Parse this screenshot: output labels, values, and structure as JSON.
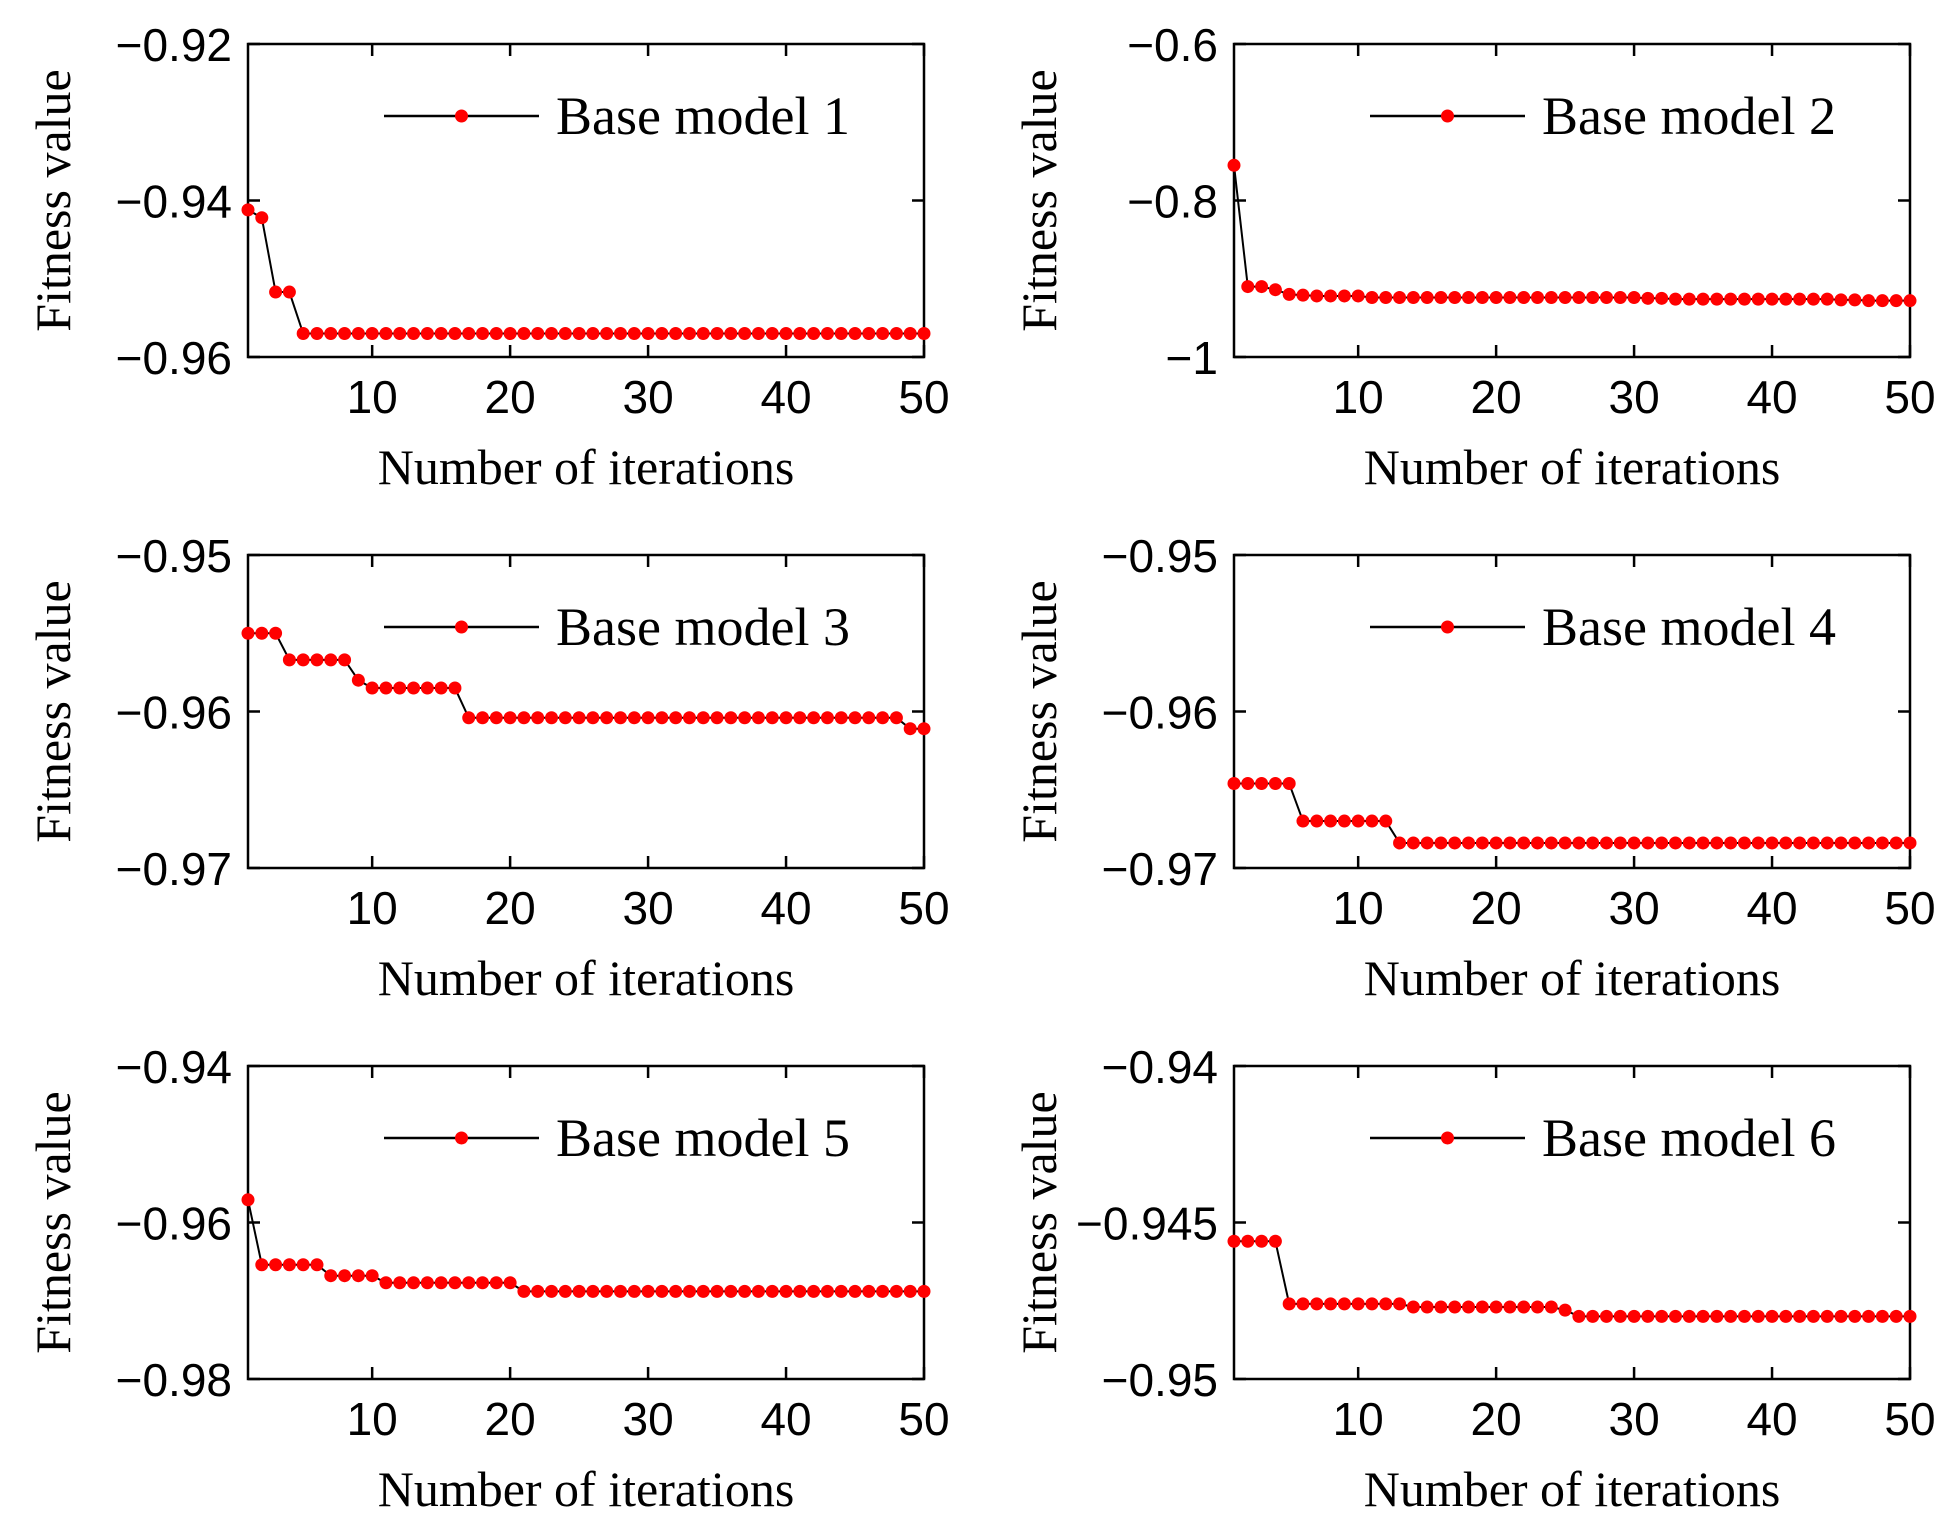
{
  "chart_data": [
    {
      "type": "line",
      "name": "Base model 1",
      "xlabel": "Number of iterations",
      "ylabel": "Fitness value",
      "xlim": [
        1,
        50
      ],
      "ylim": [
        -0.96,
        -0.92
      ],
      "xticks": [
        10,
        20,
        30,
        40,
        50
      ],
      "xtick_labels": [
        "10",
        "20",
        "30",
        "40",
        "50"
      ],
      "yticks": [
        -0.92,
        -0.94,
        -0.96
      ],
      "ytick_labels": [
        "−0.92",
        "−0.94",
        "−0.96"
      ],
      "legend": "top-right",
      "series": [
        {
          "name": "Base model 1",
          "line_color": "#000000",
          "marker_color": "#ff0000",
          "values": [
            -0.9412,
            -0.9422,
            -0.9517,
            -0.9517,
            -0.957,
            -0.957,
            -0.957,
            -0.957,
            -0.957,
            -0.957,
            -0.957,
            -0.957,
            -0.957,
            -0.957,
            -0.957,
            -0.957,
            -0.957,
            -0.957,
            -0.957,
            -0.957,
            -0.957,
            -0.957,
            -0.957,
            -0.957,
            -0.957,
            -0.957,
            -0.957,
            -0.957,
            -0.957,
            -0.957,
            -0.957,
            -0.957,
            -0.957,
            -0.957,
            -0.957,
            -0.957,
            -0.957,
            -0.957,
            -0.957,
            -0.957,
            -0.957,
            -0.957,
            -0.957,
            -0.957,
            -0.957,
            -0.957,
            -0.957,
            -0.957,
            -0.957,
            -0.957
          ]
        }
      ]
    },
    {
      "type": "line",
      "name": "Base model 2",
      "xlabel": "Number of iterations",
      "ylabel": "Fitness value",
      "xlim": [
        1,
        50
      ],
      "ylim": [
        -1.0,
        -0.6
      ],
      "xticks": [
        10,
        20,
        30,
        40,
        50
      ],
      "xtick_labels": [
        "10",
        "20",
        "30",
        "40",
        "50"
      ],
      "yticks": [
        -0.6,
        -0.8,
        -1.0
      ],
      "ytick_labels": [
        "−0.6",
        "−0.8",
        "−1"
      ],
      "legend": "top-right",
      "series": [
        {
          "name": "Base model 2",
          "line_color": "#000000",
          "marker_color": "#ff0000",
          "values": [
            -0.755,
            -0.91,
            -0.91,
            -0.914,
            -0.92,
            -0.921,
            -0.922,
            -0.922,
            -0.922,
            -0.922,
            -0.924,
            -0.924,
            -0.924,
            -0.924,
            -0.924,
            -0.924,
            -0.924,
            -0.924,
            -0.924,
            -0.924,
            -0.924,
            -0.924,
            -0.924,
            -0.924,
            -0.924,
            -0.924,
            -0.924,
            -0.924,
            -0.924,
            -0.924,
            -0.925,
            -0.925,
            -0.926,
            -0.926,
            -0.926,
            -0.926,
            -0.926,
            -0.926,
            -0.926,
            -0.926,
            -0.926,
            -0.926,
            -0.926,
            -0.926,
            -0.927,
            -0.927,
            -0.928,
            -0.928,
            -0.928,
            -0.928
          ]
        }
      ]
    },
    {
      "type": "line",
      "name": "Base model 3",
      "xlabel": "Number of iterations",
      "ylabel": "Fitness value",
      "xlim": [
        1,
        50
      ],
      "ylim": [
        -0.97,
        -0.95
      ],
      "xticks": [
        10,
        20,
        30,
        40,
        50
      ],
      "xtick_labels": [
        "10",
        "20",
        "30",
        "40",
        "50"
      ],
      "yticks": [
        -0.95,
        -0.96,
        -0.97
      ],
      "ytick_labels": [
        "−0.95",
        "−0.96",
        "−0.97"
      ],
      "legend": "top-right",
      "series": [
        {
          "name": "Base model 3",
          "line_color": "#000000",
          "marker_color": "#ff0000",
          "values": [
            -0.955,
            -0.955,
            -0.955,
            -0.9567,
            -0.9567,
            -0.9567,
            -0.9567,
            -0.9567,
            -0.958,
            -0.9585,
            -0.9585,
            -0.9585,
            -0.9585,
            -0.9585,
            -0.9585,
            -0.9585,
            -0.9604,
            -0.9604,
            -0.9604,
            -0.9604,
            -0.9604,
            -0.9604,
            -0.9604,
            -0.9604,
            -0.9604,
            -0.9604,
            -0.9604,
            -0.9604,
            -0.9604,
            -0.9604,
            -0.9604,
            -0.9604,
            -0.9604,
            -0.9604,
            -0.9604,
            -0.9604,
            -0.9604,
            -0.9604,
            -0.9604,
            -0.9604,
            -0.9604,
            -0.9604,
            -0.9604,
            -0.9604,
            -0.9604,
            -0.9604,
            -0.9604,
            -0.9604,
            -0.9611,
            -0.9611
          ]
        }
      ]
    },
    {
      "type": "line",
      "name": "Base model 4",
      "xlabel": "Number of iterations",
      "ylabel": "Fitness value",
      "xlim": [
        1,
        50
      ],
      "ylim": [
        -0.97,
        -0.95
      ],
      "xticks": [
        10,
        20,
        30,
        40,
        50
      ],
      "xtick_labels": [
        "10",
        "20",
        "30",
        "40",
        "50"
      ],
      "yticks": [
        -0.95,
        -0.96,
        -0.97
      ],
      "ytick_labels": [
        "−0.95",
        "−0.96",
        "−0.97"
      ],
      "legend": "top-right",
      "series": [
        {
          "name": "Base model 4",
          "line_color": "#000000",
          "marker_color": "#ff0000",
          "values": [
            -0.9646,
            -0.9646,
            -0.9646,
            -0.9646,
            -0.9646,
            -0.967,
            -0.967,
            -0.967,
            -0.967,
            -0.967,
            -0.967,
            -0.967,
            -0.9684,
            -0.9684,
            -0.9684,
            -0.9684,
            -0.9684,
            -0.9684,
            -0.9684,
            -0.9684,
            -0.9684,
            -0.9684,
            -0.9684,
            -0.9684,
            -0.9684,
            -0.9684,
            -0.9684,
            -0.9684,
            -0.9684,
            -0.9684,
            -0.9684,
            -0.9684,
            -0.9684,
            -0.9684,
            -0.9684,
            -0.9684,
            -0.9684,
            -0.9684,
            -0.9684,
            -0.9684,
            -0.9684,
            -0.9684,
            -0.9684,
            -0.9684,
            -0.9684,
            -0.9684,
            -0.9684,
            -0.9684,
            -0.9684,
            -0.9684
          ]
        }
      ]
    },
    {
      "type": "line",
      "name": "Base model 5",
      "xlabel": "Number of iterations",
      "ylabel": "Fitness value",
      "xlim": [
        1,
        50
      ],
      "ylim": [
        -0.98,
        -0.94
      ],
      "xticks": [
        10,
        20,
        30,
        40,
        50
      ],
      "xtick_labels": [
        "10",
        "20",
        "30",
        "40",
        "50"
      ],
      "yticks": [
        -0.94,
        -0.96,
        -0.98
      ],
      "ytick_labels": [
        "−0.94",
        "−0.96",
        "−0.98"
      ],
      "legend": "top-right",
      "series": [
        {
          "name": "Base model 5",
          "line_color": "#000000",
          "marker_color": "#ff0000",
          "values": [
            -0.9571,
            -0.9654,
            -0.9654,
            -0.9654,
            -0.9654,
            -0.9654,
            -0.9668,
            -0.9668,
            -0.9668,
            -0.9668,
            -0.9677,
            -0.9677,
            -0.9677,
            -0.9677,
            -0.9677,
            -0.9677,
            -0.9677,
            -0.9677,
            -0.9677,
            -0.9677,
            -0.9688,
            -0.9688,
            -0.9688,
            -0.9688,
            -0.9688,
            -0.9688,
            -0.9688,
            -0.9688,
            -0.9688,
            -0.9688,
            -0.9688,
            -0.9688,
            -0.9688,
            -0.9688,
            -0.9688,
            -0.9688,
            -0.9688,
            -0.9688,
            -0.9688,
            -0.9688,
            -0.9688,
            -0.9688,
            -0.9688,
            -0.9688,
            -0.9688,
            -0.9688,
            -0.9688,
            -0.9688,
            -0.9688,
            -0.9688
          ]
        }
      ]
    },
    {
      "type": "line",
      "name": "Base model 6",
      "xlabel": "Number of iterations",
      "ylabel": "Fitness value",
      "xlim": [
        1,
        50
      ],
      "ylim": [
        -0.95,
        -0.94
      ],
      "xticks": [
        10,
        20,
        30,
        40,
        50
      ],
      "xtick_labels": [
        "10",
        "20",
        "30",
        "40",
        "50"
      ],
      "yticks": [
        -0.94,
        -0.945,
        -0.95
      ],
      "ytick_labels": [
        "−0.94",
        "−0.945",
        "−0.95"
      ],
      "legend": "top-right",
      "series": [
        {
          "name": "Base model 6",
          "line_color": "#000000",
          "marker_color": "#ff0000",
          "values": [
            -0.9456,
            -0.9456,
            -0.9456,
            -0.9456,
            -0.9476,
            -0.9476,
            -0.9476,
            -0.9476,
            -0.9476,
            -0.9476,
            -0.9476,
            -0.9476,
            -0.9476,
            -0.9477,
            -0.9477,
            -0.9477,
            -0.9477,
            -0.9477,
            -0.9477,
            -0.9477,
            -0.9477,
            -0.9477,
            -0.9477,
            -0.9477,
            -0.9478,
            -0.948,
            -0.948,
            -0.948,
            -0.948,
            -0.948,
            -0.948,
            -0.948,
            -0.948,
            -0.948,
            -0.948,
            -0.948,
            -0.948,
            -0.948,
            -0.948,
            -0.948,
            -0.948,
            -0.948,
            -0.948,
            -0.948,
            -0.948,
            -0.948,
            -0.948,
            -0.948,
            -0.948,
            -0.948
          ]
        }
      ]
    }
  ]
}
